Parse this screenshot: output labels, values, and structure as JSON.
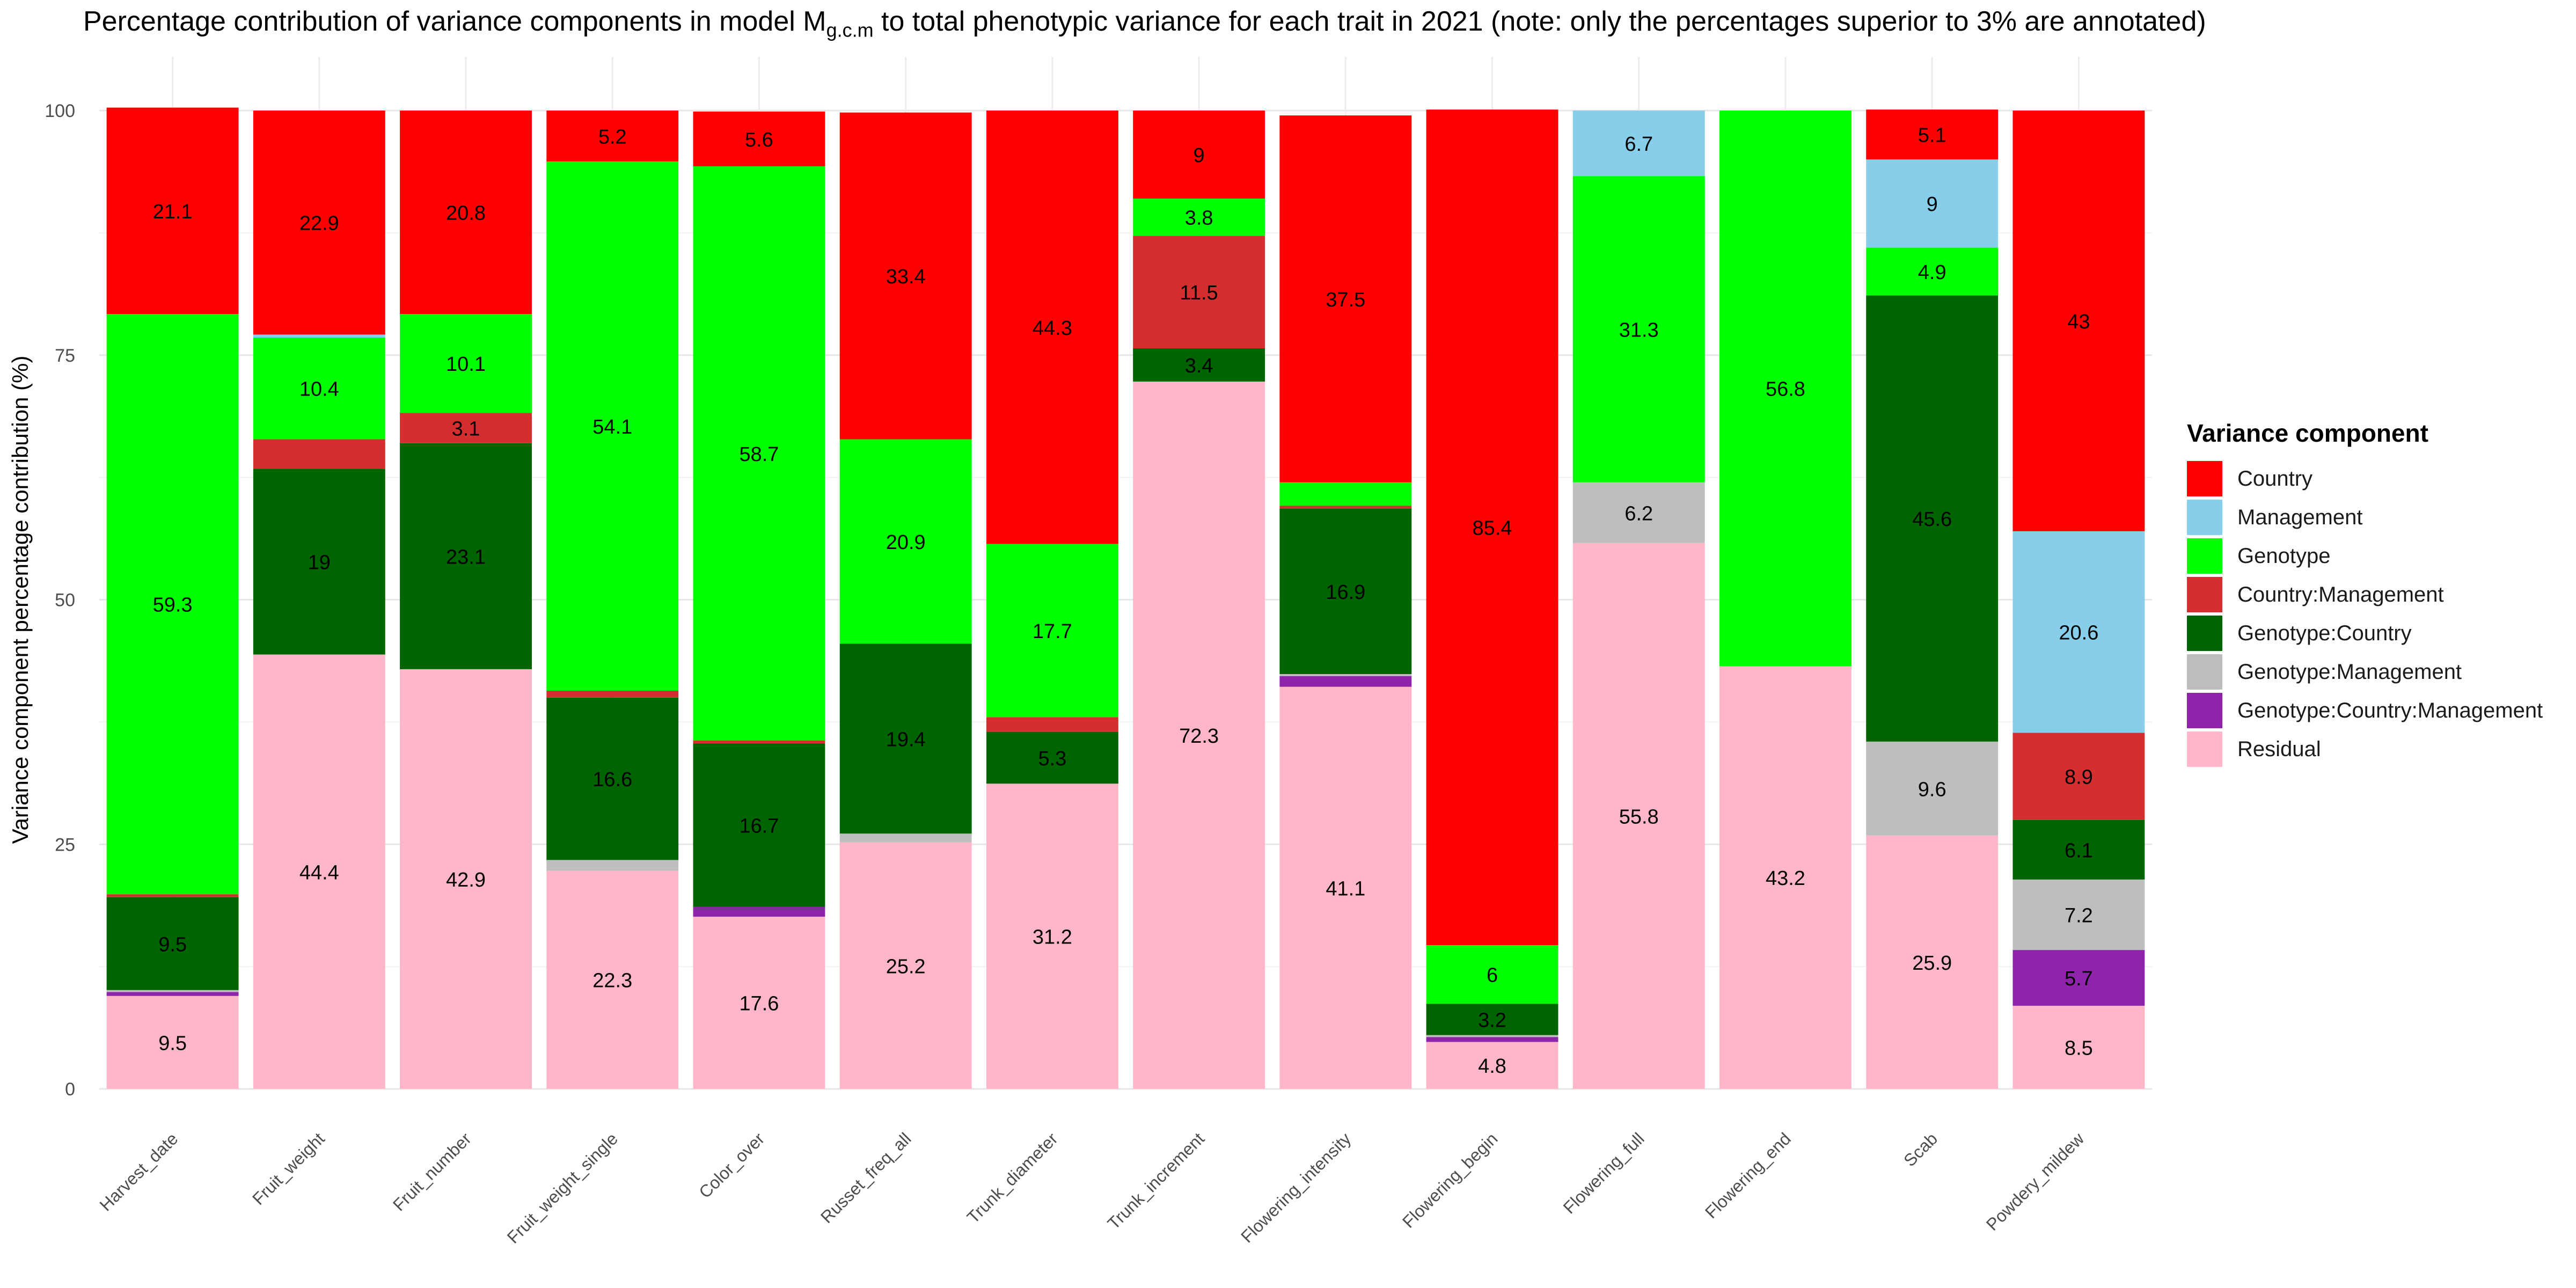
{
  "chart_data": {
    "type": "bar",
    "stacked": true,
    "title_main": "Percentage contribution of variance components in model M",
    "title_sub": "g.c.m",
    "title_rest": " to total phenotypic variance for each trait in 2021 (note: only the percentages superior to 3% are annotated)",
    "ylabel": "Variance component percentage contribution (%)",
    "xlabel": "",
    "ylim": [
      0,
      100
    ],
    "yticks": [
      "0",
      "25",
      "50",
      "75",
      "100"
    ],
    "grid": true,
    "legend_title": "Variance component",
    "legend_position": "right",
    "categories": [
      "Harvest_date",
      "Fruit_weight",
      "Fruit_number",
      "Fruit_weight_single",
      "Color_over",
      "Russet_freq_all",
      "Trunk_diameter",
      "Trunk_increment",
      "Flowering_intensity",
      "Flowering_begin",
      "Flowering_full",
      "Flowering_end",
      "Scab",
      "Powdery_mildew"
    ],
    "series": [
      {
        "name": "Residual",
        "color": "#FFB6C8",
        "values": [
          9.5,
          44.4,
          42.9,
          22.3,
          17.6,
          25.2,
          31.2,
          72.3,
          41.1,
          4.8,
          55.8,
          43.2,
          25.9,
          8.5
        ]
      },
      {
        "name": "Genotype:Country:Management",
        "color": "#8E24AA",
        "values": [
          0.4,
          0,
          0,
          0,
          1.0,
          0,
          0,
          0,
          1.1,
          0.5,
          0,
          0,
          0,
          5.7
        ]
      },
      {
        "name": "Genotype:Management",
        "color": "#BEBEBE",
        "values": [
          0.2,
          0,
          0,
          1.1,
          0,
          0.9,
          0,
          0,
          0.2,
          0.2,
          6.2,
          0,
          9.6,
          7.2
        ]
      },
      {
        "name": "Genotype:Country",
        "color": "#006400",
        "values": [
          9.5,
          19,
          23.1,
          16.6,
          16.7,
          19.4,
          5.3,
          3.4,
          16.9,
          3.2,
          0,
          0,
          45.6,
          6.1
        ]
      },
      {
        "name": "Country:Management",
        "color": "#D32F2F",
        "values": [
          0.3,
          3,
          3.1,
          0.7,
          0.3,
          0,
          1.5,
          11.5,
          0.3,
          0,
          0,
          0,
          0,
          8.9
        ]
      },
      {
        "name": "Genotype",
        "color": "#00FF00",
        "values": [
          59.3,
          10.4,
          10.1,
          54.1,
          58.7,
          20.9,
          17.7,
          3.8,
          2.4,
          6,
          31.3,
          56.8,
          4.9,
          0
        ]
      },
      {
        "name": "Management",
        "color": "#87CEEB",
        "values": [
          0,
          0.3,
          0,
          0,
          0,
          0,
          0,
          0,
          0,
          0,
          6.7,
          0,
          9,
          20.6
        ]
      },
      {
        "name": "Country",
        "color": "#FF0000",
        "values": [
          21.1,
          22.9,
          20.8,
          5.2,
          5.6,
          33.4,
          44.3,
          9,
          37.5,
          85.4,
          0,
          0,
          5.1,
          43
        ]
      }
    ],
    "legend_order": [
      "Country",
      "Management",
      "Genotype",
      "Country:Management",
      "Genotype:Country",
      "Genotype:Management",
      "Genotype:Country:Management",
      "Residual"
    ],
    "annotation_threshold": 3
  }
}
